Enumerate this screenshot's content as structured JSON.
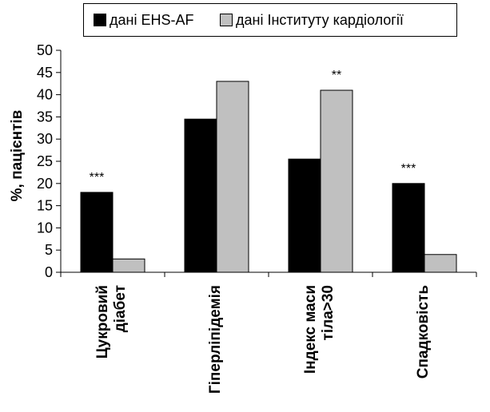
{
  "chart_data": {
    "type": "bar",
    "categories": [
      [
        "Цукровий",
        "діабет"
      ],
      [
        "Гіперліпідемія"
      ],
      [
        "Індекс маси",
        "тіла>30"
      ],
      [
        "Спадковість"
      ]
    ],
    "series": [
      {
        "name": "дані EHS-AF",
        "values": [
          18,
          34.5,
          25.5,
          20
        ],
        "color": "#000000"
      },
      {
        "name": "дані Інституту кардіології",
        "values": [
          3,
          43,
          41,
          4
        ],
        "color": "#c0c0c0"
      }
    ],
    "annotations": [
      "***",
      "",
      "**",
      "***"
    ],
    "annotation_series": [
      0,
      0,
      1,
      0
    ],
    "ylabel": "%, пацієнтів",
    "ylim": [
      0,
      50
    ],
    "yticks": [
      0,
      5,
      10,
      15,
      20,
      25,
      30,
      35,
      40,
      45,
      50
    ],
    "grid": false,
    "legend_position": "top"
  }
}
